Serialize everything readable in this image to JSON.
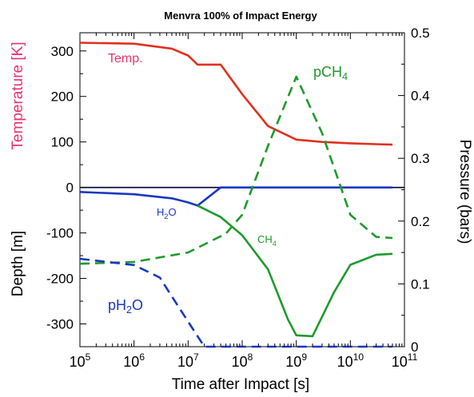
{
  "chart_data": {
    "type": "line",
    "title": "Menvra 100% of Impact Energy",
    "x_axis": {
      "label": "Time after Impact [s]",
      "scale": "log",
      "range": [
        100000,
        100000000000
      ],
      "ticks": [
        {
          "value": 100000,
          "base": "10",
          "exp": "5"
        },
        {
          "value": 1000000,
          "base": "10",
          "exp": "6"
        },
        {
          "value": 10000000,
          "base": "10",
          "exp": "7"
        },
        {
          "value": 100000000,
          "base": "10",
          "exp": "8"
        },
        {
          "value": 1000000000,
          "base": "10",
          "exp": "9"
        },
        {
          "value": 10000000000,
          "base": "10",
          "exp": "10"
        },
        {
          "value": 100000000000,
          "base": "10",
          "exp": "11"
        }
      ]
    },
    "left_axis": {
      "label_top": "Temperature [K]",
      "label_top_color": "#e8336b",
      "label_bottom": "Depth [m]",
      "label_bottom_color": "#000000",
      "range": [
        -350,
        340
      ],
      "ticks": [
        300,
        200,
        100,
        0,
        -100,
        -200,
        -300
      ]
    },
    "right_axis": {
      "label": "Pressure (bars)",
      "range": [
        0,
        0.5
      ],
      "ticks": [
        0,
        0.1,
        0.2,
        0.3,
        0.4,
        0.5
      ]
    },
    "series": [
      {
        "name": "Temp.",
        "color": "#e0301e",
        "style": "solid",
        "axis": "left",
        "label_color": "#e8336b",
        "points": [
          [
            100000,
            318
          ],
          [
            1000000,
            316
          ],
          [
            5000000,
            305
          ],
          [
            10000000,
            290
          ],
          [
            15000000,
            270
          ],
          [
            40000000,
            270
          ],
          [
            100000000,
            205
          ],
          [
            300000000,
            135
          ],
          [
            1000000000,
            105
          ],
          [
            3000000000,
            100
          ],
          [
            10000000000,
            97
          ],
          [
            30000000000,
            95
          ],
          [
            60000000000,
            94
          ]
        ]
      },
      {
        "name": "H2O",
        "label_main": "H",
        "label_sub": "2",
        "label_tail": "O",
        "color": "#1838c0",
        "style": "solid",
        "axis": "left",
        "points": [
          [
            100000,
            -10
          ],
          [
            1000000,
            -15
          ],
          [
            5000000,
            -24
          ],
          [
            10000000,
            -33
          ],
          [
            15000000,
            -40
          ],
          [
            40000000,
            0
          ],
          [
            60000000000,
            0
          ]
        ]
      },
      {
        "name": "CH4",
        "label_main": "CH",
        "label_sub": "4",
        "color": "#1e9a2c",
        "style": "solid",
        "axis": "left",
        "points": [
          [
            15000000,
            -40
          ],
          [
            40000000,
            -65
          ],
          [
            100000000,
            -105
          ],
          [
            300000000,
            -180
          ],
          [
            700000000,
            -290
          ],
          [
            1000000000,
            -325
          ],
          [
            2000000000,
            -327
          ],
          [
            5000000000,
            -230
          ],
          [
            10000000000,
            -170
          ],
          [
            30000000000,
            -148
          ],
          [
            60000000000,
            -146
          ]
        ]
      },
      {
        "name": "pCH4",
        "label_main": "pCH",
        "label_sub": "4",
        "color": "#1e9a2c",
        "style": "dashed",
        "axis": "right",
        "points": [
          [
            100000,
            0.132
          ],
          [
            1000000,
            0.135
          ],
          [
            10000000,
            0.15
          ],
          [
            50000000,
            0.18
          ],
          [
            100000000,
            0.21
          ],
          [
            300000000,
            0.32
          ],
          [
            1000000000,
            0.43
          ],
          [
            3000000000,
            0.34
          ],
          [
            10000000000,
            0.21
          ],
          [
            30000000000,
            0.175
          ],
          [
            60000000000,
            0.173
          ]
        ]
      },
      {
        "name": "pH2O",
        "label_main": "pH",
        "label_sub": "2",
        "label_tail": "O",
        "color": "#1838c0",
        "style": "dashed",
        "axis": "right",
        "points": [
          [
            100000,
            0.14
          ],
          [
            1000000,
            0.13
          ],
          [
            3000000,
            0.11
          ],
          [
            5000000,
            0.08
          ],
          [
            10000000,
            0.04
          ],
          [
            20000000,
            0.0
          ],
          [
            60000000000,
            0.0
          ]
        ]
      }
    ],
    "zero_line": {
      "value": 0,
      "color": "#000033"
    }
  }
}
